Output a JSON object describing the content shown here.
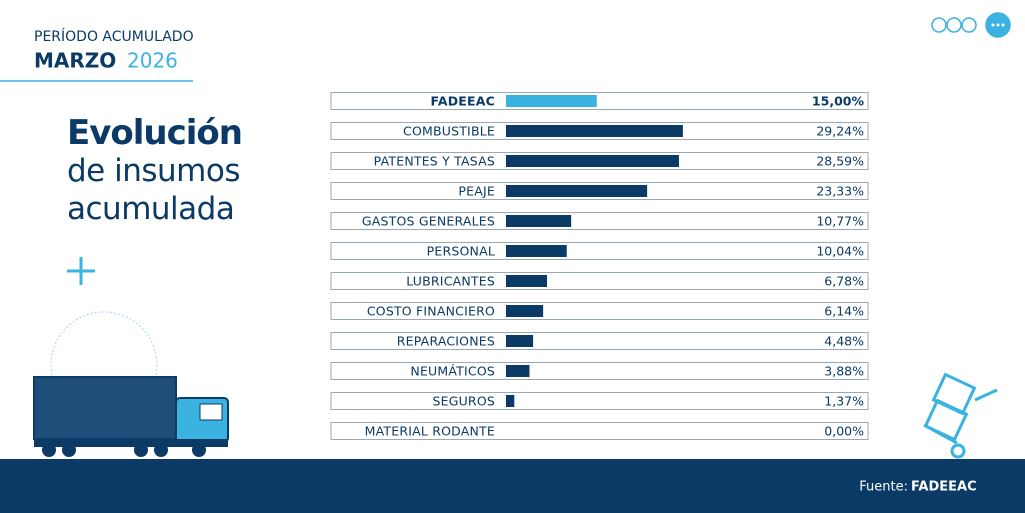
{
  "chart_data": {
    "type": "bar",
    "orientation": "horizontal",
    "period_label": "PERÍODO ACUMULADO",
    "month": "MARZO",
    "year": "2026",
    "title": "Evolución",
    "subtitle": "de insumos acumulada",
    "categories": [
      "FADEEAC",
      "COMBUSTIBLE",
      "PATENTES Y TASAS",
      "PEAJE",
      "GASTOS GENERALES",
      "PERSONAL",
      "LUBRICANTES",
      "COSTO FINANCIERO",
      "REPARACIONES",
      "NEUMÁTICOS",
      "SEGUROS",
      "MATERIAL RODANTE"
    ],
    "values": [
      15.0,
      29.24,
      28.59,
      23.33,
      10.77,
      10.04,
      6.78,
      6.14,
      4.48,
      3.88,
      1.37,
      0.0
    ],
    "value_labels": [
      "15,00%",
      "29,24%",
      "28,59%",
      "23,33%",
      "10,77%",
      "10,04%",
      "6,78%",
      "6,14%",
      "4,48%",
      "3,88%",
      "1,37%",
      "0,00%"
    ],
    "colors": [
      "#3bb3e0",
      "#0b3a66",
      "#0b3a66",
      "#0b3a66",
      "#0b3a66",
      "#0b3a66",
      "#0b3a66",
      "#0b3a66",
      "#0b3a66",
      "#0b3a66",
      "#0b3a66",
      "#0b3a66"
    ],
    "source_label": "Fuente:",
    "source": "FADEEAC"
  }
}
